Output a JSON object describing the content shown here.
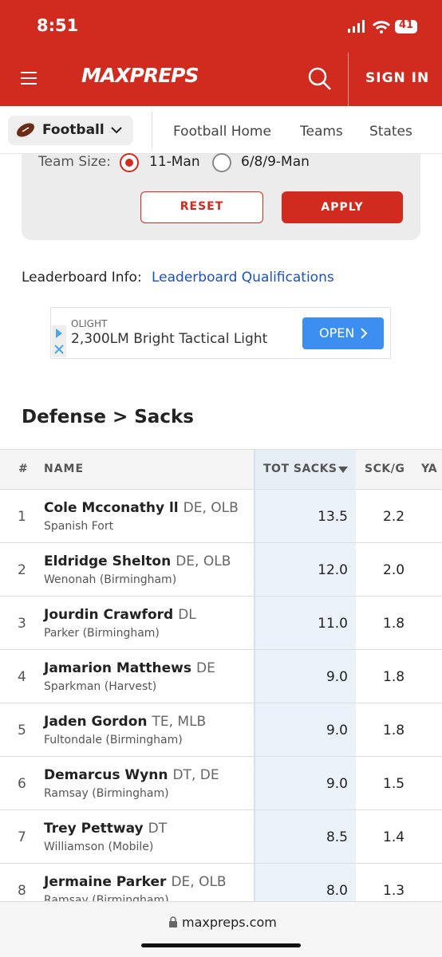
{
  "status_bar": {
    "time": "8:51",
    "battery": "41"
  },
  "header": {
    "logo": "MAXPREPS",
    "sign_in": "SIGN IN"
  },
  "nav": {
    "sport": "Football",
    "links": [
      "Football Home",
      "Teams",
      "States"
    ]
  },
  "filters": {
    "team_size_label": "Team Size:",
    "options": [
      "11-Man",
      "6/8/9-Man"
    ],
    "reset": "RESET",
    "apply": "APPLY"
  },
  "leaderboard_info": {
    "label": "Leaderboard Info:",
    "link": "Leaderboard Qualifications"
  },
  "ad": {
    "brand": "OLIGHT",
    "text": "2,300LM Bright Tactical Light",
    "button": "OPEN"
  },
  "section_title": "Defense > Sacks",
  "table": {
    "headers": [
      "#",
      "NAME",
      "TOT SACKS",
      "SCK/G",
      "YA"
    ],
    "rows": [
      {
        "rank": "1",
        "name": "Cole Mcconathy ll",
        "position": "DE, OLB",
        "school": "Spanish Fort",
        "tot_sacks": "13.5",
        "sck_g": "2.2"
      },
      {
        "rank": "2",
        "name": "Eldridge Shelton",
        "position": "DE, OLB",
        "school": "Wenonah (Birmingham)",
        "tot_sacks": "12.0",
        "sck_g": "2.0"
      },
      {
        "rank": "3",
        "name": "Jourdin Crawford",
        "position": "DL",
        "school": "Parker (Birmingham)",
        "tot_sacks": "11.0",
        "sck_g": "1.8"
      },
      {
        "rank": "4",
        "name": "Jamarion Matthews",
        "position": "DE",
        "school": "Sparkman (Harvest)",
        "tot_sacks": "9.0",
        "sck_g": "1.8"
      },
      {
        "rank": "5",
        "name": "Jaden Gordon",
        "position": "TE, MLB",
        "school": "Fultondale (Birmingham)",
        "tot_sacks": "9.0",
        "sck_g": "1.8"
      },
      {
        "rank": "6",
        "name": "Demarcus Wynn",
        "position": "DT, DE",
        "school": "Ramsay (Birmingham)",
        "tot_sacks": "9.0",
        "sck_g": "1.5"
      },
      {
        "rank": "7",
        "name": "Trey Pettway",
        "position": "DT",
        "school": "Williamson (Mobile)",
        "tot_sacks": "8.5",
        "sck_g": "1.4"
      },
      {
        "rank": "8",
        "name": "Jermaine Parker",
        "position": "DE, OLB",
        "school": "Ramsay (Birmingham)",
        "tot_sacks": "8.0",
        "sck_g": "1.3"
      }
    ]
  },
  "browser": {
    "url": "maxpreps.com"
  }
}
